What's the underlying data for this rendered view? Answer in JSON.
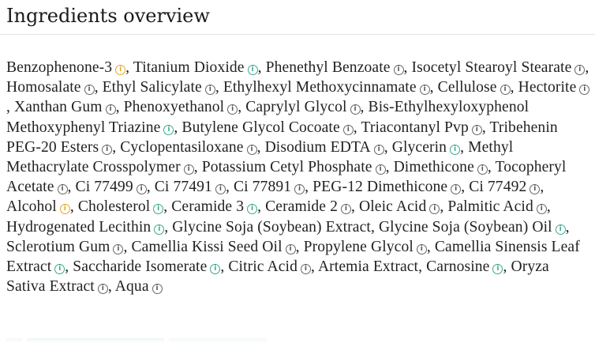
{
  "section": {
    "title": "Ingredients overview"
  },
  "ingredients": [
    {
      "name": "Benzophenone-3",
      "rating": "caution"
    },
    {
      "name": "Titanium Dioxide",
      "rating": "good"
    },
    {
      "name": "Phenethyl Benzoate",
      "rating": "neutral"
    },
    {
      "name": "Isocetyl Stearoyl Stearate",
      "rating": "neutral"
    },
    {
      "name": "Homosalate",
      "rating": "neutral"
    },
    {
      "name": "Ethyl Salicylate",
      "rating": "neutral"
    },
    {
      "name": "Ethylhexyl Methoxycinnamate",
      "rating": "neutral"
    },
    {
      "name": "Cellulose",
      "rating": "neutral"
    },
    {
      "name": "Hectorite",
      "rating": "neutral"
    },
    {
      "name": "Xanthan Gum",
      "rating": "neutral"
    },
    {
      "name": "Phenoxyethanol",
      "rating": "neutral"
    },
    {
      "name": "Caprylyl Glycol",
      "rating": "neutral"
    },
    {
      "name": "Bis-Ethylhexyloxyphenol Methoxyphenyl Triazine",
      "rating": "good"
    },
    {
      "name": "Butylene Glycol Cocoate",
      "rating": "neutral"
    },
    {
      "name": "Triacontanyl Pvp",
      "rating": "neutral"
    },
    {
      "name": "Tribehenin PEG-20 Esters",
      "rating": "neutral"
    },
    {
      "name": "Cyclopentasiloxane",
      "rating": "neutral"
    },
    {
      "name": "Disodium EDTA",
      "rating": "neutral"
    },
    {
      "name": "Glycerin",
      "rating": "good"
    },
    {
      "name": "Methyl Methacrylate Crosspolymer",
      "rating": "neutral"
    },
    {
      "name": "Potassium Cetyl Phosphate",
      "rating": "neutral"
    },
    {
      "name": "Dimethicone",
      "rating": "neutral"
    },
    {
      "name": "Tocopheryl Acetate",
      "rating": "neutral"
    },
    {
      "name": "Ci 77499",
      "rating": "neutral"
    },
    {
      "name": "Ci 77491",
      "rating": "neutral"
    },
    {
      "name": "Ci 77891",
      "rating": "neutral"
    },
    {
      "name": "PEG-12 Dimethicone",
      "rating": "neutral"
    },
    {
      "name": "Ci 77492",
      "rating": "neutral"
    },
    {
      "name": "Alcohol",
      "rating": "caution"
    },
    {
      "name": "Cholesterol",
      "rating": "good"
    },
    {
      "name": "Ceramide 3",
      "rating": "good"
    },
    {
      "name": "Ceramide 2",
      "rating": "neutral"
    },
    {
      "name": "Oleic Acid",
      "rating": "neutral"
    },
    {
      "name": "Palmitic Acid",
      "rating": "neutral"
    },
    {
      "name": "Hydrogenated Lecithin",
      "rating": "good"
    },
    {
      "name": "Glycine Soja (Soybean) Extract",
      "rating": "none"
    },
    {
      "name": "Glycine Soja (Soybean) Oil",
      "rating": "good"
    },
    {
      "name": "Sclerotium Gum",
      "rating": "neutral"
    },
    {
      "name": "Camellia Kissi Seed Oil",
      "rating": "neutral"
    },
    {
      "name": "Propylene Glycol",
      "rating": "neutral"
    },
    {
      "name": "Camellia Sinensis Leaf Extract",
      "rating": "good"
    },
    {
      "name": "Saccharide Isomerate",
      "rating": "good"
    },
    {
      "name": "Citric Acid",
      "rating": "neutral"
    },
    {
      "name": "Artemia Extract",
      "rating": "none"
    },
    {
      "name": "Carnosine",
      "rating": "good"
    },
    {
      "name": "Oryza Sativa Extract",
      "rating": "neutral"
    },
    {
      "name": "Aqua",
      "rating": "neutral"
    }
  ],
  "info_glyph": "i",
  "separator": ", ",
  "colors": {
    "good": "#3aa98e",
    "caution": "#e6a623",
    "neutral": "#666666"
  },
  "icons": {
    "good": "info-circle-green-icon",
    "caution": "info-circle-orange-icon",
    "neutral": "info-circle-gray-icon"
  }
}
